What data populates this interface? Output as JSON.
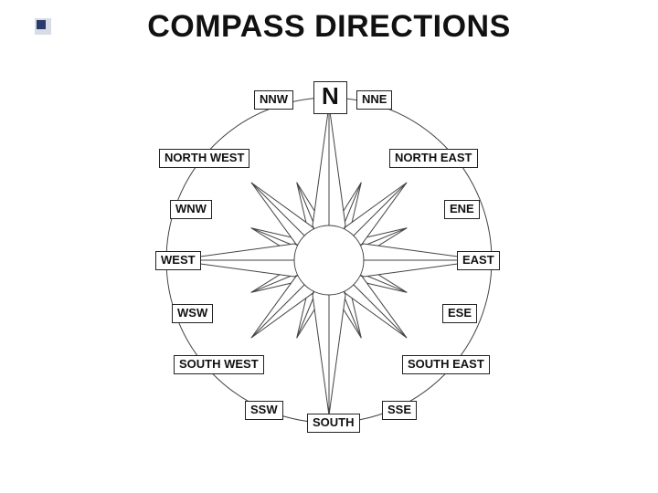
{
  "title": "COMPASS DIRECTIONS",
  "compass": {
    "type": "compass-rose",
    "background_color": "#ffffff",
    "stroke_color": "#444444",
    "stroke_width": 1,
    "circle_radius": 178,
    "hub_radius": 38,
    "cardinal_point_len": 170,
    "intercardinal_point_len": 120,
    "secondary_point_len": 92,
    "cardinal_half_width": 18,
    "intercardinal_half_width": 13,
    "secondary_half_width": 9
  },
  "labels": {
    "n": "N",
    "nne": "NNE",
    "ne": "NORTH EAST",
    "ene": "ENE",
    "e": "EAST",
    "ese": "ESE",
    "se": "SOUTH EAST",
    "sse": "SSE",
    "s": "SOUTH",
    "ssw": "SSW",
    "sw": "SOUTH WEST",
    "wsw": "WSW",
    "w": "WEST",
    "wnw": "WNW",
    "nw": "NORTH WEST",
    "nnw": "NNW"
  },
  "bullet": {
    "outer_color": "#d7dce6",
    "inner_color": "#2a3a6a"
  }
}
